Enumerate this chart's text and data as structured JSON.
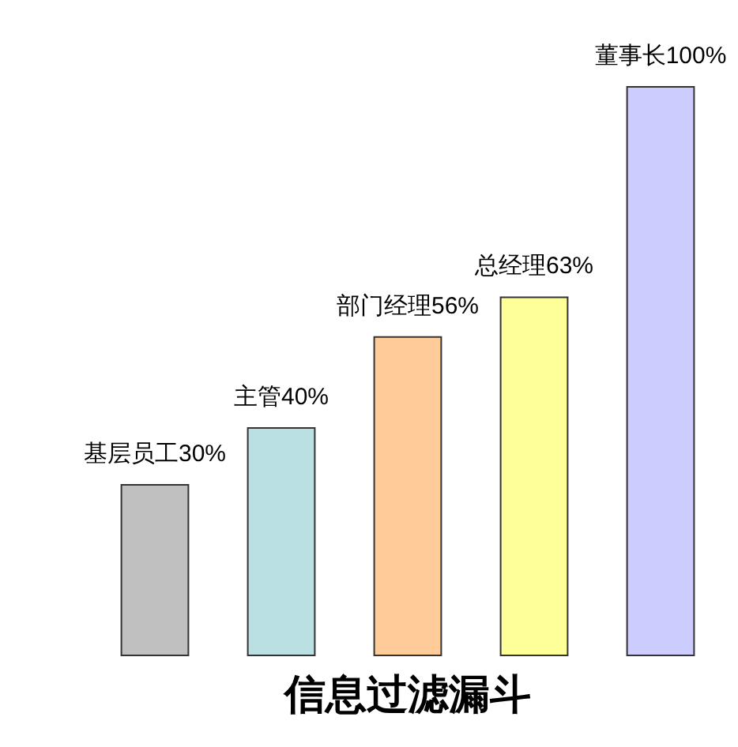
{
  "chart_data": {
    "type": "bar",
    "title": "信息过滤漏斗",
    "categories": [
      null,
      null,
      null,
      null,
      null
    ],
    "values": [
      30,
      40,
      56,
      63,
      100
    ],
    "colors": [
      "#c0c0c0",
      "#bae0e4",
      "#ffcc99",
      "#ffff99",
      "#ccccff"
    ],
    "value_labels": [
      "基层员工30%",
      "主管40%",
      "部门经理56%",
      "总经理63%",
      "董事长100%"
    ]
  }
}
